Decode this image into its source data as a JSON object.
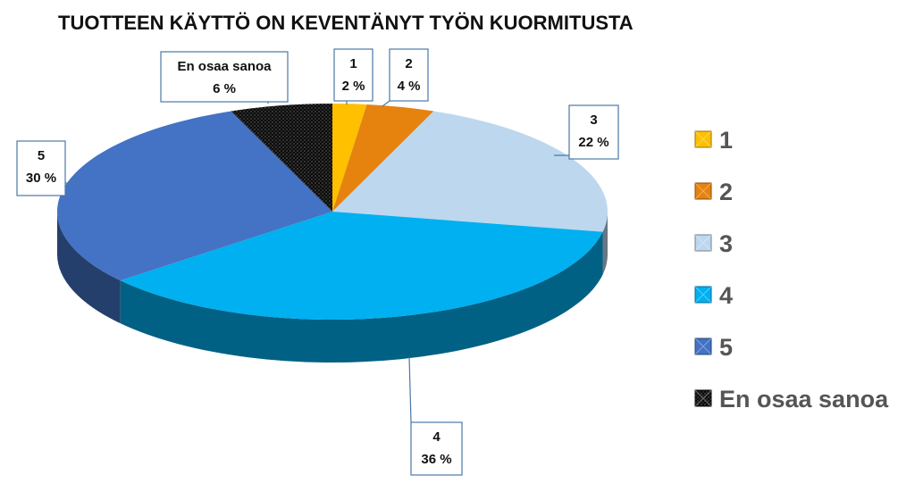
{
  "chart_data": {
    "type": "pie",
    "title": "TUOTTEEN KÄYTTÖ ON KEVENTÄNYT TYÖN KUORMITUSTA",
    "categories": [
      "1",
      "2",
      "3",
      "4",
      "5",
      "En osaa sanoa"
    ],
    "values": [
      2,
      4,
      22,
      36,
      30,
      6
    ],
    "value_labels": [
      "2 %",
      "4 %",
      "22 %",
      "36 %",
      "30 %",
      "6 %"
    ],
    "colors": [
      "#ffc000",
      "#e6820e",
      "#bdd7ee",
      "#00b0f0",
      "#4472c4",
      "#111111"
    ],
    "style": "3d-pie",
    "legend_position": "right"
  }
}
